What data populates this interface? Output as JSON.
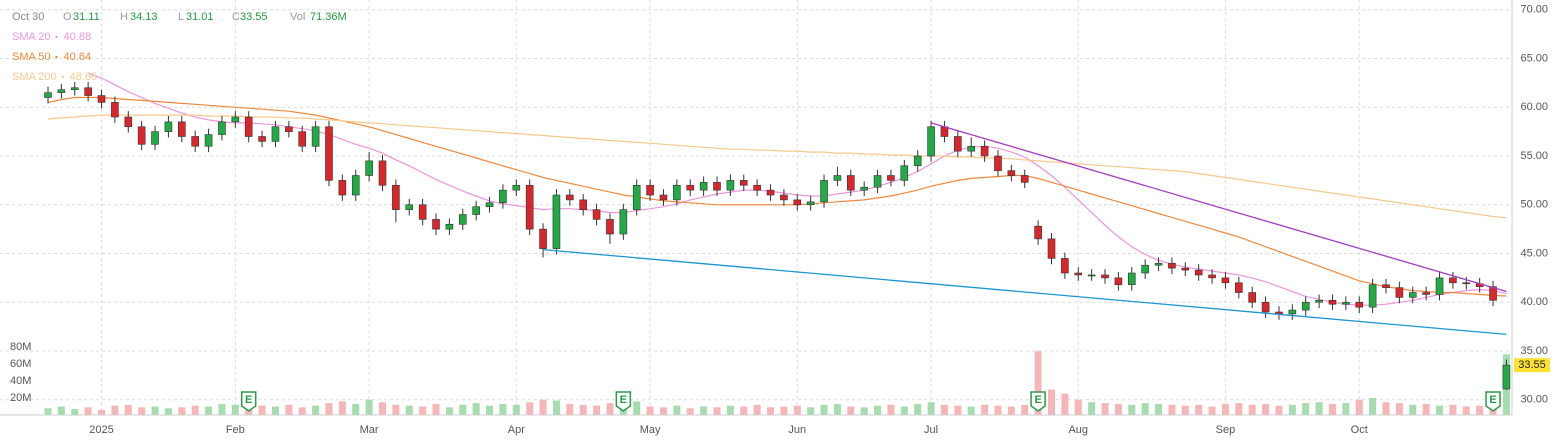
{
  "chart_data": {
    "type": "candlestick",
    "header": {
      "date": "Oct 30",
      "open_label": "O",
      "high_label": "H",
      "low_label": "L",
      "close_label": "C",
      "volume_label": "Vol",
      "volume_text": "71.36M"
    },
    "categories": [
      null,
      null,
      null,
      null,
      "2025",
      null,
      null,
      null,
      null,
      null,
      null,
      null,
      null,
      null,
      "Feb",
      null,
      null,
      null,
      null,
      null,
      null,
      null,
      null,
      null,
      "Mar",
      null,
      null,
      null,
      null,
      null,
      null,
      null,
      null,
      null,
      null,
      "Apr",
      null,
      null,
      null,
      null,
      null,
      null,
      null,
      null,
      null,
      "May",
      null,
      null,
      null,
      null,
      null,
      null,
      null,
      null,
      null,
      null,
      "Jun",
      null,
      null,
      null,
      null,
      null,
      null,
      null,
      null,
      null,
      "Jul",
      null,
      null,
      null,
      null,
      null,
      null,
      null,
      null,
      null,
      null,
      "Aug",
      null,
      null,
      null,
      null,
      null,
      null,
      null,
      null,
      null,
      null,
      "Sep",
      null,
      null,
      null,
      null,
      null,
      null,
      null,
      null,
      null,
      "Oct",
      null,
      null,
      null,
      null,
      null,
      null,
      null,
      null,
      null,
      null,
      null
    ],
    "open": [
      61.0,
      61.5,
      61.8,
      62.0,
      61.2,
      60.5,
      59.0,
      58.0,
      56.2,
      57.5,
      58.5,
      57.0,
      56.0,
      57.2,
      58.5,
      59.0,
      57.0,
      56.5,
      58.0,
      57.5,
      56.0,
      58.0,
      52.5,
      51.0,
      53.0,
      54.5,
      52.0,
      49.5,
      50.0,
      48.5,
      47.5,
      48.0,
      49.0,
      49.8,
      50.2,
      51.5,
      52.0,
      47.5,
      45.5,
      51.0,
      50.5,
      49.5,
      48.5,
      47.0,
      49.5,
      52.0,
      51.0,
      50.5,
      52.0,
      51.5,
      52.3,
      51.5,
      52.5,
      52.0,
      51.5,
      51.0,
      50.5,
      50.0,
      50.3,
      52.5,
      53.0,
      51.5,
      51.8,
      53.0,
      52.5,
      54.0,
      55.0,
      58.0,
      57.0,
      55.5,
      56.0,
      55.0,
      53.5,
      53.0,
      47.8,
      46.5,
      44.5,
      43.0,
      42.8,
      42.8,
      42.5,
      41.8,
      43.0,
      43.8,
      44.0,
      43.5,
      43.3,
      42.8,
      42.5,
      42.0,
      41.0,
      40.0,
      39.0,
      38.8,
      39.2,
      40.0,
      40.2,
      39.8,
      40.0,
      39.5,
      41.8,
      41.5,
      40.5,
      41.0,
      40.8,
      42.5,
      42.0,
      41.9,
      41.6,
      31.11
    ],
    "high": [
      62.1,
      62.4,
      62.6,
      62.6,
      61.8,
      61.1,
      59.6,
      58.6,
      58.1,
      59.1,
      59.1,
      57.6,
      57.8,
      59.1,
      59.6,
      59.6,
      57.6,
      58.6,
      58.6,
      58.1,
      58.6,
      58.6,
      53.1,
      53.6,
      55.4,
      55.1,
      52.6,
      50.6,
      50.6,
      49.1,
      48.6,
      49.6,
      50.4,
      50.8,
      52.1,
      52.6,
      52.6,
      48.1,
      51.6,
      51.6,
      51.1,
      50.1,
      49.1,
      50.1,
      52.6,
      52.6,
      51.6,
      52.6,
      52.6,
      52.9,
      52.9,
      53.1,
      53.1,
      52.6,
      52.1,
      51.6,
      51.1,
      50.9,
      53.1,
      53.9,
      53.6,
      52.4,
      53.6,
      53.6,
      54.6,
      55.6,
      58.6,
      58.6,
      57.6,
      56.9,
      56.6,
      55.6,
      54.1,
      53.6,
      48.4,
      47.1,
      45.1,
      43.6,
      43.4,
      43.4,
      43.1,
      43.6,
      44.4,
      44.6,
      44.6,
      44.1,
      43.9,
      43.4,
      43.1,
      42.6,
      41.6,
      40.6,
      39.6,
      39.8,
      40.6,
      40.8,
      40.8,
      40.6,
      40.6,
      42.4,
      42.4,
      42.1,
      41.6,
      41.6,
      43.1,
      43.1,
      42.6,
      42.5,
      42.2,
      34.13
    ],
    "low": [
      60.4,
      60.9,
      61.2,
      60.6,
      59.9,
      58.4,
      57.4,
      55.6,
      55.6,
      56.9,
      56.4,
      55.4,
      55.4,
      56.6,
      57.9,
      56.4,
      55.9,
      55.9,
      56.9,
      55.4,
      55.4,
      51.9,
      50.4,
      50.4,
      52.4,
      51.4,
      48.2,
      48.9,
      47.9,
      46.9,
      46.9,
      47.4,
      48.4,
      49.2,
      49.6,
      50.9,
      46.9,
      44.6,
      44.9,
      49.9,
      48.9,
      47.9,
      46.0,
      46.4,
      48.9,
      50.4,
      49.9,
      49.9,
      50.9,
      50.9,
      50.9,
      50.9,
      51.4,
      50.9,
      50.4,
      49.9,
      49.4,
      49.4,
      49.7,
      51.9,
      50.9,
      50.9,
      51.2,
      51.9,
      51.9,
      53.4,
      54.4,
      56.4,
      54.9,
      54.9,
      54.4,
      52.9,
      52.4,
      51.7,
      45.9,
      43.9,
      42.4,
      42.2,
      42.2,
      41.9,
      41.2,
      41.2,
      42.4,
      43.2,
      42.9,
      42.7,
      42.2,
      41.9,
      41.4,
      40.4,
      39.4,
      38.4,
      38.2,
      38.2,
      38.6,
      39.4,
      39.2,
      39.2,
      38.9,
      38.9,
      40.9,
      39.9,
      39.9,
      40.2,
      40.2,
      41.4,
      41.3,
      41.0,
      39.6,
      31.01
    ],
    "close": [
      61.5,
      61.8,
      62.0,
      61.2,
      60.5,
      59.0,
      58.0,
      56.2,
      57.5,
      58.5,
      57.0,
      56.0,
      57.2,
      58.5,
      59.0,
      57.0,
      56.5,
      58.0,
      57.5,
      56.0,
      58.0,
      52.5,
      51.0,
      53.0,
      54.5,
      52.0,
      49.5,
      50.0,
      48.5,
      47.5,
      48.0,
      49.0,
      49.8,
      50.2,
      51.5,
      52.0,
      47.5,
      45.5,
      51.0,
      50.5,
      49.5,
      48.5,
      47.0,
      49.5,
      52.0,
      51.0,
      50.5,
      52.0,
      51.5,
      52.3,
      51.5,
      52.5,
      52.0,
      51.5,
      51.0,
      50.5,
      50.0,
      50.3,
      52.5,
      53.0,
      51.5,
      51.8,
      53.0,
      52.5,
      54.0,
      55.0,
      58.0,
      57.0,
      55.5,
      56.0,
      55.0,
      53.5,
      53.0,
      52.3,
      46.5,
      44.5,
      43.0,
      42.8,
      42.8,
      42.5,
      41.8,
      43.0,
      43.8,
      44.0,
      43.5,
      43.3,
      42.8,
      42.5,
      42.0,
      41.0,
      40.0,
      39.0,
      38.8,
      39.2,
      40.0,
      40.2,
      39.8,
      40.0,
      39.5,
      41.8,
      41.5,
      40.5,
      41.0,
      40.8,
      42.5,
      42.0,
      41.9,
      41.6,
      40.2,
      33.55
    ],
    "up_color": "#22ab45",
    "down_color": "#d8262b",
    "volume": {
      "values": [
        8,
        10,
        7,
        9,
        6,
        11,
        12,
        9,
        10,
        8,
        9,
        11,
        10,
        13,
        12,
        14,
        11,
        10,
        12,
        9,
        11,
        14,
        16,
        13,
        18,
        15,
        12,
        11,
        10,
        13,
        9,
        12,
        14,
        11,
        13,
        12,
        15,
        18,
        17,
        13,
        12,
        11,
        14,
        12,
        16,
        10,
        9,
        11,
        8,
        10,
        9,
        11,
        10,
        12,
        9,
        10,
        11,
        9,
        12,
        13,
        10,
        9,
        11,
        12,
        10,
        13,
        15,
        12,
        11,
        10,
        12,
        11,
        10,
        12,
        75,
        30,
        25,
        18,
        15,
        14,
        13,
        12,
        14,
        13,
        12,
        11,
        12,
        10,
        13,
        14,
        12,
        13,
        11,
        12,
        14,
        15,
        13,
        14,
        18,
        20,
        15,
        14,
        12,
        13,
        11,
        12,
        10,
        11,
        14,
        71.36
      ],
      "up_color": "#a6dcae",
      "down_color": "#f6b6b8",
      "ylim": [
        0,
        80
      ],
      "yticks": [
        {
          "value": 20,
          "label": "20M"
        },
        {
          "value": 40,
          "label": "40M"
        },
        {
          "value": 60,
          "label": "60M"
        },
        {
          "value": 80,
          "label": "80M"
        }
      ]
    },
    "series": [
      {
        "name": "SMA 20",
        "color": "#ec95dc",
        "values": [
          null,
          null,
          null,
          63.5,
          63.0,
          62.3,
          61.6,
          61.0,
          60.4,
          59.9,
          59.4,
          59.0,
          58.7,
          58.5,
          58.4,
          58.4,
          58.3,
          58.2,
          58.0,
          57.8,
          57.6,
          57.2,
          56.7,
          56.2,
          55.8,
          55.3,
          54.6,
          54.0,
          53.3,
          52.6,
          52.0,
          51.4,
          50.9,
          50.4,
          50.1,
          49.9,
          49.7,
          49.5,
          49.6,
          49.6,
          49.5,
          49.4,
          49.2,
          49.2,
          49.4,
          49.6,
          49.8,
          50.1,
          50.5,
          50.8,
          51.1,
          51.3,
          51.5,
          51.5,
          51.4,
          51.2,
          51.0,
          50.9,
          50.9,
          51.1,
          51.3,
          51.5,
          51.9,
          52.3,
          52.8,
          53.4,
          54.2,
          55.0,
          55.6,
          55.9,
          56.0,
          55.8,
          55.4,
          54.9,
          54.0,
          53.0,
          51.8,
          50.5,
          49.2,
          47.9,
          46.7,
          45.7,
          44.9,
          44.3,
          43.9,
          43.6,
          43.4,
          43.2,
          43.0,
          42.8,
          42.5,
          42.1,
          41.6,
          41.1,
          40.6,
          40.3,
          40.0,
          39.8,
          39.7,
          39.7,
          39.8,
          40.0,
          40.2,
          40.5,
          40.8,
          41.0,
          41.2,
          41.3,
          41.2,
          40.88
        ]
      },
      {
        "name": "SMA 50",
        "color": "#f0883a",
        "values": [
          60.5,
          60.8,
          61.0,
          61.0,
          61.0,
          60.9,
          60.8,
          60.7,
          60.6,
          60.5,
          60.4,
          60.3,
          60.2,
          60.1,
          60.0,
          59.9,
          59.8,
          59.7,
          59.6,
          59.4,
          59.2,
          58.9,
          58.6,
          58.3,
          58.0,
          57.6,
          57.2,
          56.8,
          56.4,
          56.0,
          55.6,
          55.2,
          54.8,
          54.4,
          54.0,
          53.6,
          53.2,
          52.8,
          52.5,
          52.2,
          51.9,
          51.6,
          51.3,
          51.0,
          50.8,
          50.6,
          50.4,
          50.3,
          50.2,
          50.1,
          50.0,
          50.0,
          50.0,
          50.0,
          50.0,
          50.0,
          50.0,
          50.1,
          50.2,
          50.3,
          50.4,
          50.5,
          50.7,
          50.9,
          51.2,
          51.5,
          51.9,
          52.2,
          52.5,
          52.7,
          52.8,
          52.9,
          53.0,
          53.0,
          52.7,
          52.3,
          51.9,
          51.5,
          51.1,
          50.7,
          50.3,
          49.9,
          49.5,
          49.1,
          48.7,
          48.3,
          47.9,
          47.5,
          47.1,
          46.7,
          46.2,
          45.7,
          45.2,
          44.7,
          44.2,
          43.7,
          43.2,
          42.7,
          42.2,
          41.9,
          41.6,
          41.4,
          41.2,
          41.1,
          41.0,
          41.0,
          40.9,
          40.8,
          40.7,
          40.64
        ]
      },
      {
        "name": "SMA 200",
        "color": "#f5c98c",
        "values": [
          58.8,
          58.9,
          59.0,
          59.1,
          59.2,
          59.2,
          59.2,
          59.2,
          59.2,
          59.2,
          59.2,
          59.2,
          59.1,
          59.1,
          59.1,
          59.0,
          59.0,
          59.0,
          58.9,
          58.9,
          58.8,
          58.7,
          58.6,
          58.5,
          58.4,
          58.3,
          58.2,
          58.1,
          58.0,
          57.9,
          57.8,
          57.7,
          57.6,
          57.5,
          57.4,
          57.3,
          57.2,
          57.1,
          57.0,
          56.9,
          56.8,
          56.7,
          56.6,
          56.5,
          56.4,
          56.3,
          56.2,
          56.1,
          56.0,
          55.9,
          55.8,
          55.7,
          55.7,
          55.6,
          55.6,
          55.5,
          55.5,
          55.4,
          55.4,
          55.3,
          55.3,
          55.2,
          55.2,
          55.1,
          55.1,
          55.0,
          55.0,
          55.0,
          54.9,
          54.9,
          54.8,
          54.8,
          54.7,
          54.6,
          54.5,
          54.4,
          54.3,
          54.2,
          54.1,
          54.0,
          53.9,
          53.8,
          53.7,
          53.6,
          53.5,
          53.4,
          53.2,
          53.0,
          52.8,
          52.6,
          52.4,
          52.2,
          52.0,
          51.8,
          51.6,
          51.4,
          51.2,
          51.0,
          50.8,
          50.6,
          50.4,
          50.2,
          50.0,
          49.8,
          49.6,
          49.4,
          49.2,
          49.0,
          48.8,
          48.66
        ]
      }
    ],
    "trendlines": [
      {
        "color": "#a43cc4",
        "x": [
          66,
          109
        ],
        "values": [
          58.4,
          41.1
        ]
      },
      {
        "color": "#1b95d4",
        "x": [
          37,
          109
        ],
        "values": [
          45.4,
          36.7
        ]
      }
    ],
    "earnings": {
      "label": "E",
      "color": "#2a9a48",
      "x": [
        15,
        43,
        74,
        108
      ]
    },
    "last_price_color": "#ffe033",
    "ylim": [
      28.5,
      71
    ],
    "yticks": [
      {
        "value": 30,
        "label": "30.00"
      },
      {
        "value": 35,
        "label": "35.00"
      },
      {
        "value": 40,
        "label": "40.00"
      },
      {
        "value": 45,
        "label": "45.00"
      },
      {
        "value": 50,
        "label": "50.00"
      },
      {
        "value": 55,
        "label": "55.00"
      },
      {
        "value": 60,
        "label": "60.00"
      },
      {
        "value": 65,
        "label": "65.00"
      },
      {
        "value": 70,
        "label": "70.00"
      }
    ],
    "grid": true
  }
}
